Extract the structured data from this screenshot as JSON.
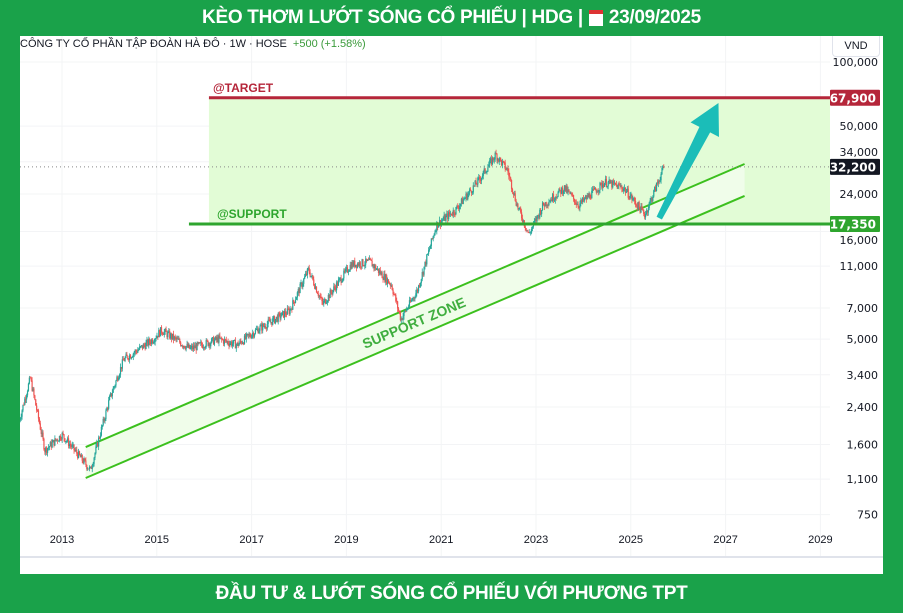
{
  "header": {
    "title_left": "KÈO THƠM LƯỚT SÓNG CỔ PHIẾU | HDG |",
    "date": "23/09/2025",
    "calendar_icon": "calendar-icon"
  },
  "footer": {
    "text": "ĐẦU TƯ & LƯỚT SÓNG CỔ PHIẾU VỚI PHƯƠNG TPT"
  },
  "legend": {
    "symbol_info": "CÔNG TY CỔ PHẦN TẬP ĐOÀN HÀ ĐÔ · 1W · HOSE",
    "change": "+500 (+1.58%)"
  },
  "currency": "VND",
  "chart_data": {
    "type": "candlestick",
    "interval": "1W",
    "yscale": "log",
    "ylim": [
      700,
      110000
    ],
    "xlim": [
      2012.1,
      2029.2
    ],
    "y_ticks": [
      100000,
      50000,
      34000,
      24000,
      16000,
      11000,
      7000,
      5000,
      3400,
      2400,
      1600,
      1100,
      750
    ],
    "y_tick_labels": [
      "100,000",
      "50,000",
      "34,000",
      "24,000",
      "16,000",
      "11,000",
      "7,000",
      "5,000",
      "3,400",
      "2,400",
      "1,600",
      "1,100",
      "750"
    ],
    "x_ticks": [
      2013,
      2015,
      2017,
      2019,
      2021,
      2023,
      2025,
      2027,
      2029
    ],
    "x_tick_labels": [
      "2013",
      "2015",
      "2017",
      "2019",
      "2021",
      "2023",
      "2025",
      "2027",
      "2029"
    ],
    "price_path": [
      [
        2012.1,
        2080
      ],
      [
        2012.33,
        3280
      ],
      [
        2012.64,
        1505
      ],
      [
        2013.0,
        1780
      ],
      [
        2013.6,
        1215
      ],
      [
        2014.0,
        2600
      ],
      [
        2014.3,
        4000
      ],
      [
        2014.9,
        4950
      ],
      [
        2015.1,
        5500
      ],
      [
        2015.7,
        4500
      ],
      [
        2016.3,
        5000
      ],
      [
        2016.7,
        4700
      ],
      [
        2017.1,
        5500
      ],
      [
        2017.8,
        6800
      ],
      [
        2018.2,
        10600
      ],
      [
        2018.5,
        7300
      ],
      [
        2019.1,
        11200
      ],
      [
        2019.5,
        11500
      ],
      [
        2019.95,
        9000
      ],
      [
        2020.15,
        6200
      ],
      [
        2020.5,
        8500
      ],
      [
        2020.9,
        17200
      ],
      [
        2021.3,
        20200
      ],
      [
        2021.8,
        28000
      ],
      [
        2022.15,
        36700
      ],
      [
        2022.4,
        31000
      ],
      [
        2022.6,
        21300
      ],
      [
        2022.85,
        15500
      ],
      [
        2023.15,
        21300
      ],
      [
        2023.6,
        25600
      ],
      [
        2023.9,
        21300
      ],
      [
        2024.45,
        27300
      ],
      [
        2024.85,
        25600
      ],
      [
        2025.3,
        19200
      ],
      [
        2025.7,
        32200
      ]
    ],
    "last_price": {
      "value": 32200,
      "label": "32,200",
      "color": "#131722"
    },
    "target": {
      "value": 67900,
      "label": "67,900",
      "name": "@TARGET",
      "color": "#b5263a"
    },
    "support": {
      "value": 17350,
      "label": "17,350",
      "name": "@SUPPORT",
      "color": "#2ea52e"
    },
    "target_zone": {
      "from_year": 2016.1,
      "fill": "#e2fcd6"
    },
    "support_zone": {
      "label": "SUPPORT ZONE",
      "color": "#3cc01e",
      "upper": [
        [
          2013.5,
          1556
        ],
        [
          2027.4,
          33200
        ]
      ],
      "lower": [
        [
          2013.5,
          1114
        ],
        [
          2027.4,
          23500
        ]
      ]
    },
    "arrow": {
      "from": [
        2025.6,
        18500
      ],
      "to": [
        2026.85,
        64200
      ],
      "color": "#1bbdb8"
    },
    "colors": {
      "up": "#26a69a",
      "down": "#ef5350"
    }
  }
}
